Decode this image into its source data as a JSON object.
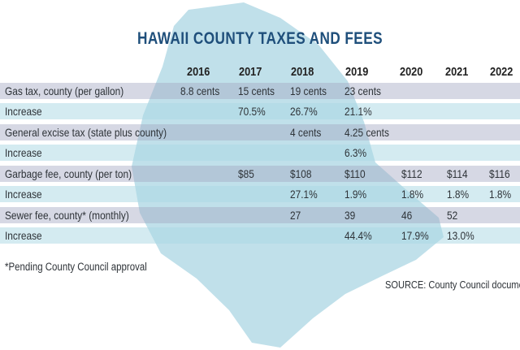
{
  "title": "HAWAII COUNTY TAXES AND FEES",
  "chart_data": {
    "type": "table",
    "title": "HAWAII COUNTY TAXES AND FEES",
    "columns": [
      "",
      "2016",
      "2017",
      "2018",
      "2019",
      "2020",
      "2021",
      "2022"
    ],
    "rows": [
      {
        "kind": "main",
        "cells": [
          "Gas tax, county  (per gallon)",
          "8.8 cents",
          "15 cents",
          "19 cents",
          "23 cents",
          "",
          "",
          ""
        ]
      },
      {
        "kind": "inc",
        "cells": [
          "Increase",
          "",
          "70.5%",
          "26.7%",
          "21.1%",
          "",
          "",
          ""
        ]
      },
      {
        "kind": "main",
        "cells": [
          "General excise tax (state plus county)",
          "",
          "",
          "4 cents",
          "4.25 cents",
          "",
          "",
          ""
        ]
      },
      {
        "kind": "inc",
        "cells": [
          "Increase",
          "",
          "",
          "",
          "6.3%",
          "",
          "",
          ""
        ]
      },
      {
        "kind": "main",
        "cells": [
          "Garbage fee, county  (per ton)",
          "",
          "$85",
          "$108",
          "$110",
          "$112",
          "$114",
          "$116"
        ]
      },
      {
        "kind": "inc",
        "cells": [
          "Increase",
          "",
          "",
          "27.1%",
          "1.9%",
          "1.8%",
          "1.8%",
          "1.8%"
        ]
      },
      {
        "kind": "main",
        "cells": [
          "Sewer fee, county* (monthly)",
          "",
          "",
          "27",
          "39",
          "46",
          "52",
          ""
        ]
      },
      {
        "kind": "inc",
        "cells": [
          "Increase",
          "",
          "",
          "",
          "44.4%",
          "17.9%",
          "13.0%",
          ""
        ]
      }
    ]
  },
  "footnote": "*Pending County Council approval",
  "source": "SOURCE: County Council documents",
  "colors": {
    "title": "#1f4f7b",
    "map": "#b9dbe6"
  }
}
